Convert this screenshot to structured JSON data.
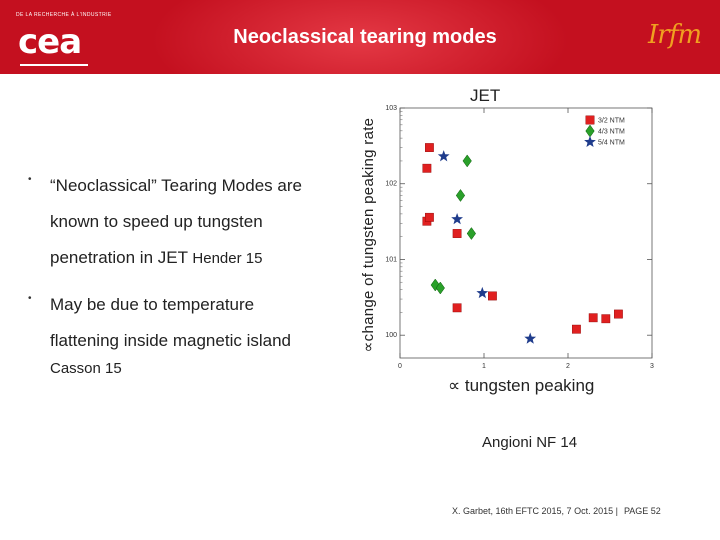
{
  "header": {
    "title": "Neoclassical tearing modes",
    "cea_caption": "DE LA RECHERCHE À L'INDUSTRIE",
    "cea_logo_text": "cea",
    "irfm_logo_text": "Irfm",
    "background_color": "#c4101f"
  },
  "bullets": [
    {
      "lines": [
        "“Neoclassical” Tearing Modes are",
        "known to speed up tungsten",
        "penetration in JET"
      ],
      "ref": "Hender 15"
    },
    {
      "lines": [
        "May be due to temperature",
        "flattening inside magnetic island"
      ],
      "ref": "Casson 15"
    }
  ],
  "chart_data": {
    "type": "scatter",
    "title": "JET",
    "xlabel": "∝ tungsten peaking",
    "ylabel": "∝change of tungsten peaking rate",
    "x_ticks": [
      "0",
      "1",
      "2",
      "3"
    ],
    "y_ticks": [
      "10^0",
      "10^1",
      "10^2",
      "10^3"
    ],
    "xlim": [
      0,
      3
    ],
    "ylim": [
      0.5,
      1000
    ],
    "y_scale": "log",
    "legend_position": "top-right",
    "series": [
      {
        "name": "3/2 NTM",
        "marker": "square",
        "color": "#e02020",
        "points": [
          [
            0.35,
            300
          ],
          [
            0.32,
            160
          ],
          [
            0.32,
            32
          ],
          [
            0.35,
            36
          ],
          [
            0.3,
            26
          ],
          [
            0.7,
            26
          ],
          [
            0.68,
            20
          ],
          [
            0.68,
            22
          ],
          [
            0.7,
            16
          ],
          [
            0.7,
            14
          ],
          [
            0.7,
            17
          ],
          [
            0.7,
            25
          ],
          [
            0.68,
            23
          ],
          [
            0.68,
            18
          ],
          [
            0.7,
            21
          ],
          [
            0.7,
            19
          ],
          [
            0.68,
            16
          ],
          [
            0.68,
            24
          ],
          [
            0.7,
            18
          ],
          [
            0.7,
            22
          ],
          [
            0.62,
            28
          ],
          [
            0.68,
            16
          ],
          [
            0.7,
            20
          ],
          [
            0.68,
            24
          ],
          [
            0.7,
            19
          ],
          [
            0.7,
            23
          ],
          [
            0.68,
            21
          ],
          [
            0.7,
            16
          ],
          [
            0.7,
            17
          ],
          [
            0.68,
            19
          ],
          [
            0.68,
            22
          ],
          [
            0.7,
            20
          ],
          [
            0.7,
            18
          ],
          [
            0.68,
            17
          ],
          [
            0.68,
            21
          ],
          [
            0.7,
            25
          ],
          [
            0.68,
            20
          ],
          [
            0.68,
            23
          ],
          [
            0.7,
            24
          ],
          [
            0.7,
            21
          ],
          [
            0.68,
            18
          ],
          [
            0.68,
            19
          ],
          [
            0.7,
            22
          ],
          [
            0.7,
            16
          ],
          [
            0.68,
            17
          ],
          [
            0.68,
            24
          ],
          [
            0.7,
            21
          ],
          [
            0.68,
            20
          ],
          [
            0.7,
            18
          ],
          [
            0.7,
            23
          ],
          [
            0.68,
            19
          ],
          [
            0.68,
            22
          ],
          [
            0.7,
            17
          ],
          [
            0.7,
            24
          ],
          [
            0.68,
            16
          ],
          [
            0.68,
            21
          ],
          [
            0.7,
            20
          ],
          [
            0.68,
            18
          ],
          [
            0.7,
            23
          ],
          [
            0.7,
            19
          ],
          [
            0.68,
            25
          ],
          [
            0.68,
            17
          ],
          [
            0.7,
            22
          ],
          [
            0.7,
            16
          ],
          [
            0.68,
            24
          ],
          [
            0.7,
            20
          ],
          [
            0.68,
            21
          ],
          [
            0.7,
            18
          ],
          [
            0.68,
            23
          ],
          [
            0.68,
            19
          ],
          [
            0.7,
            17
          ],
          [
            0.7,
            22
          ],
          [
            0.68,
            24
          ],
          [
            0.68,
            16
          ],
          [
            0.7,
            21
          ],
          [
            0.7,
            20
          ],
          [
            0.68,
            25
          ],
          [
            0.68,
            18
          ],
          [
            0.7,
            23
          ],
          [
            0.7,
            19
          ],
          [
            0.68,
            22
          ],
          [
            0.68,
            17
          ],
          [
            0.7,
            24
          ],
          [
            0.7,
            16
          ],
          [
            0.68,
            20
          ],
          [
            0.7,
            21
          ],
          [
            0.68,
            18
          ],
          [
            0.7,
            25
          ],
          [
            0.68,
            23
          ],
          [
            0.68,
            19
          ],
          [
            0.7,
            17
          ],
          [
            0.7,
            22
          ],
          [
            0.68,
            16
          ],
          [
            0.68,
            24
          ],
          [
            0.7,
            20
          ],
          [
            0.7,
            21
          ],
          [
            0.68,
            18
          ],
          [
            0.68,
            23
          ],
          [
            0.7,
            19
          ],
          [
            0.7,
            25
          ],
          [
            0.68,
            17
          ],
          [
            0.68,
            22
          ],
          [
            0.7,
            16
          ],
          [
            0.7,
            24
          ],
          [
            0.68,
            21
          ],
          [
            0.68,
            20
          ],
          [
            0.7,
            18
          ],
          [
            0.7,
            23
          ],
          [
            0.68,
            19
          ],
          [
            0.68,
            17
          ],
          [
            0.7,
            22
          ],
          [
            0.7,
            16
          ],
          [
            0.68,
            24
          ],
          [
            0.68,
            25
          ],
          [
            0.7,
            21
          ],
          [
            0.7,
            20
          ],
          [
            0.68,
            18
          ],
          [
            0.68,
            23
          ],
          [
            0.7,
            19
          ],
          [
            0.7,
            17
          ],
          [
            0.68,
            22
          ],
          [
            0.68,
            16
          ],
          [
            0.7,
            24
          ],
          [
            0.7,
            25
          ],
          [
            0.68,
            21
          ],
          [
            0.68,
            20
          ],
          [
            0.7,
            18
          ],
          [
            0.7,
            23
          ],
          [
            0.68,
            19
          ],
          [
            0.68,
            17
          ],
          [
            0.7,
            22
          ],
          [
            0.7,
            16
          ],
          [
            0.68,
            24
          ],
          [
            0.68,
            25
          ],
          [
            0.7,
            21
          ],
          [
            0.7,
            20
          ],
          [
            0.68,
            18
          ],
          [
            0.68,
            23
          ],
          [
            0.7,
            19
          ],
          [
            0.7,
            17
          ],
          [
            0.68,
            22
          ],
          [
            0.68,
            16
          ],
          [
            0.7,
            24
          ],
          [
            0.7,
            25
          ],
          [
            0.68,
            21
          ],
          [
            0.68,
            20
          ],
          [
            0.7,
            18
          ],
          [
            0.7,
            23
          ],
          [
            0.68,
            19
          ],
          [
            0.68,
            17
          ]
        ]
      },
      {
        "name": "4/3 NTM",
        "marker": "diamond",
        "color": "#2aa02a",
        "points": [
          [
            0.8,
            200
          ],
          [
            0.7,
            70
          ],
          [
            0.95,
            22
          ],
          [
            0.42,
            4.6
          ],
          [
            0.48,
            4.2
          ],
          [
            0.72,
            28
          ]
        ]
      },
      {
        "name": "5/4 NTM",
        "marker": "star",
        "color": "#1f3c8c",
        "points": [
          [
            0.52,
            230
          ],
          [
            0.68,
            34
          ],
          [
            0.98,
            3.6
          ],
          [
            1.55,
            0.9
          ]
        ]
      }
    ]
  },
  "source_note": "Angioni NF 14",
  "footer": {
    "text": "X. Garbet, 16th EFTC 2015, 7 Oct. 2015 |",
    "page": "PAGE 52"
  }
}
